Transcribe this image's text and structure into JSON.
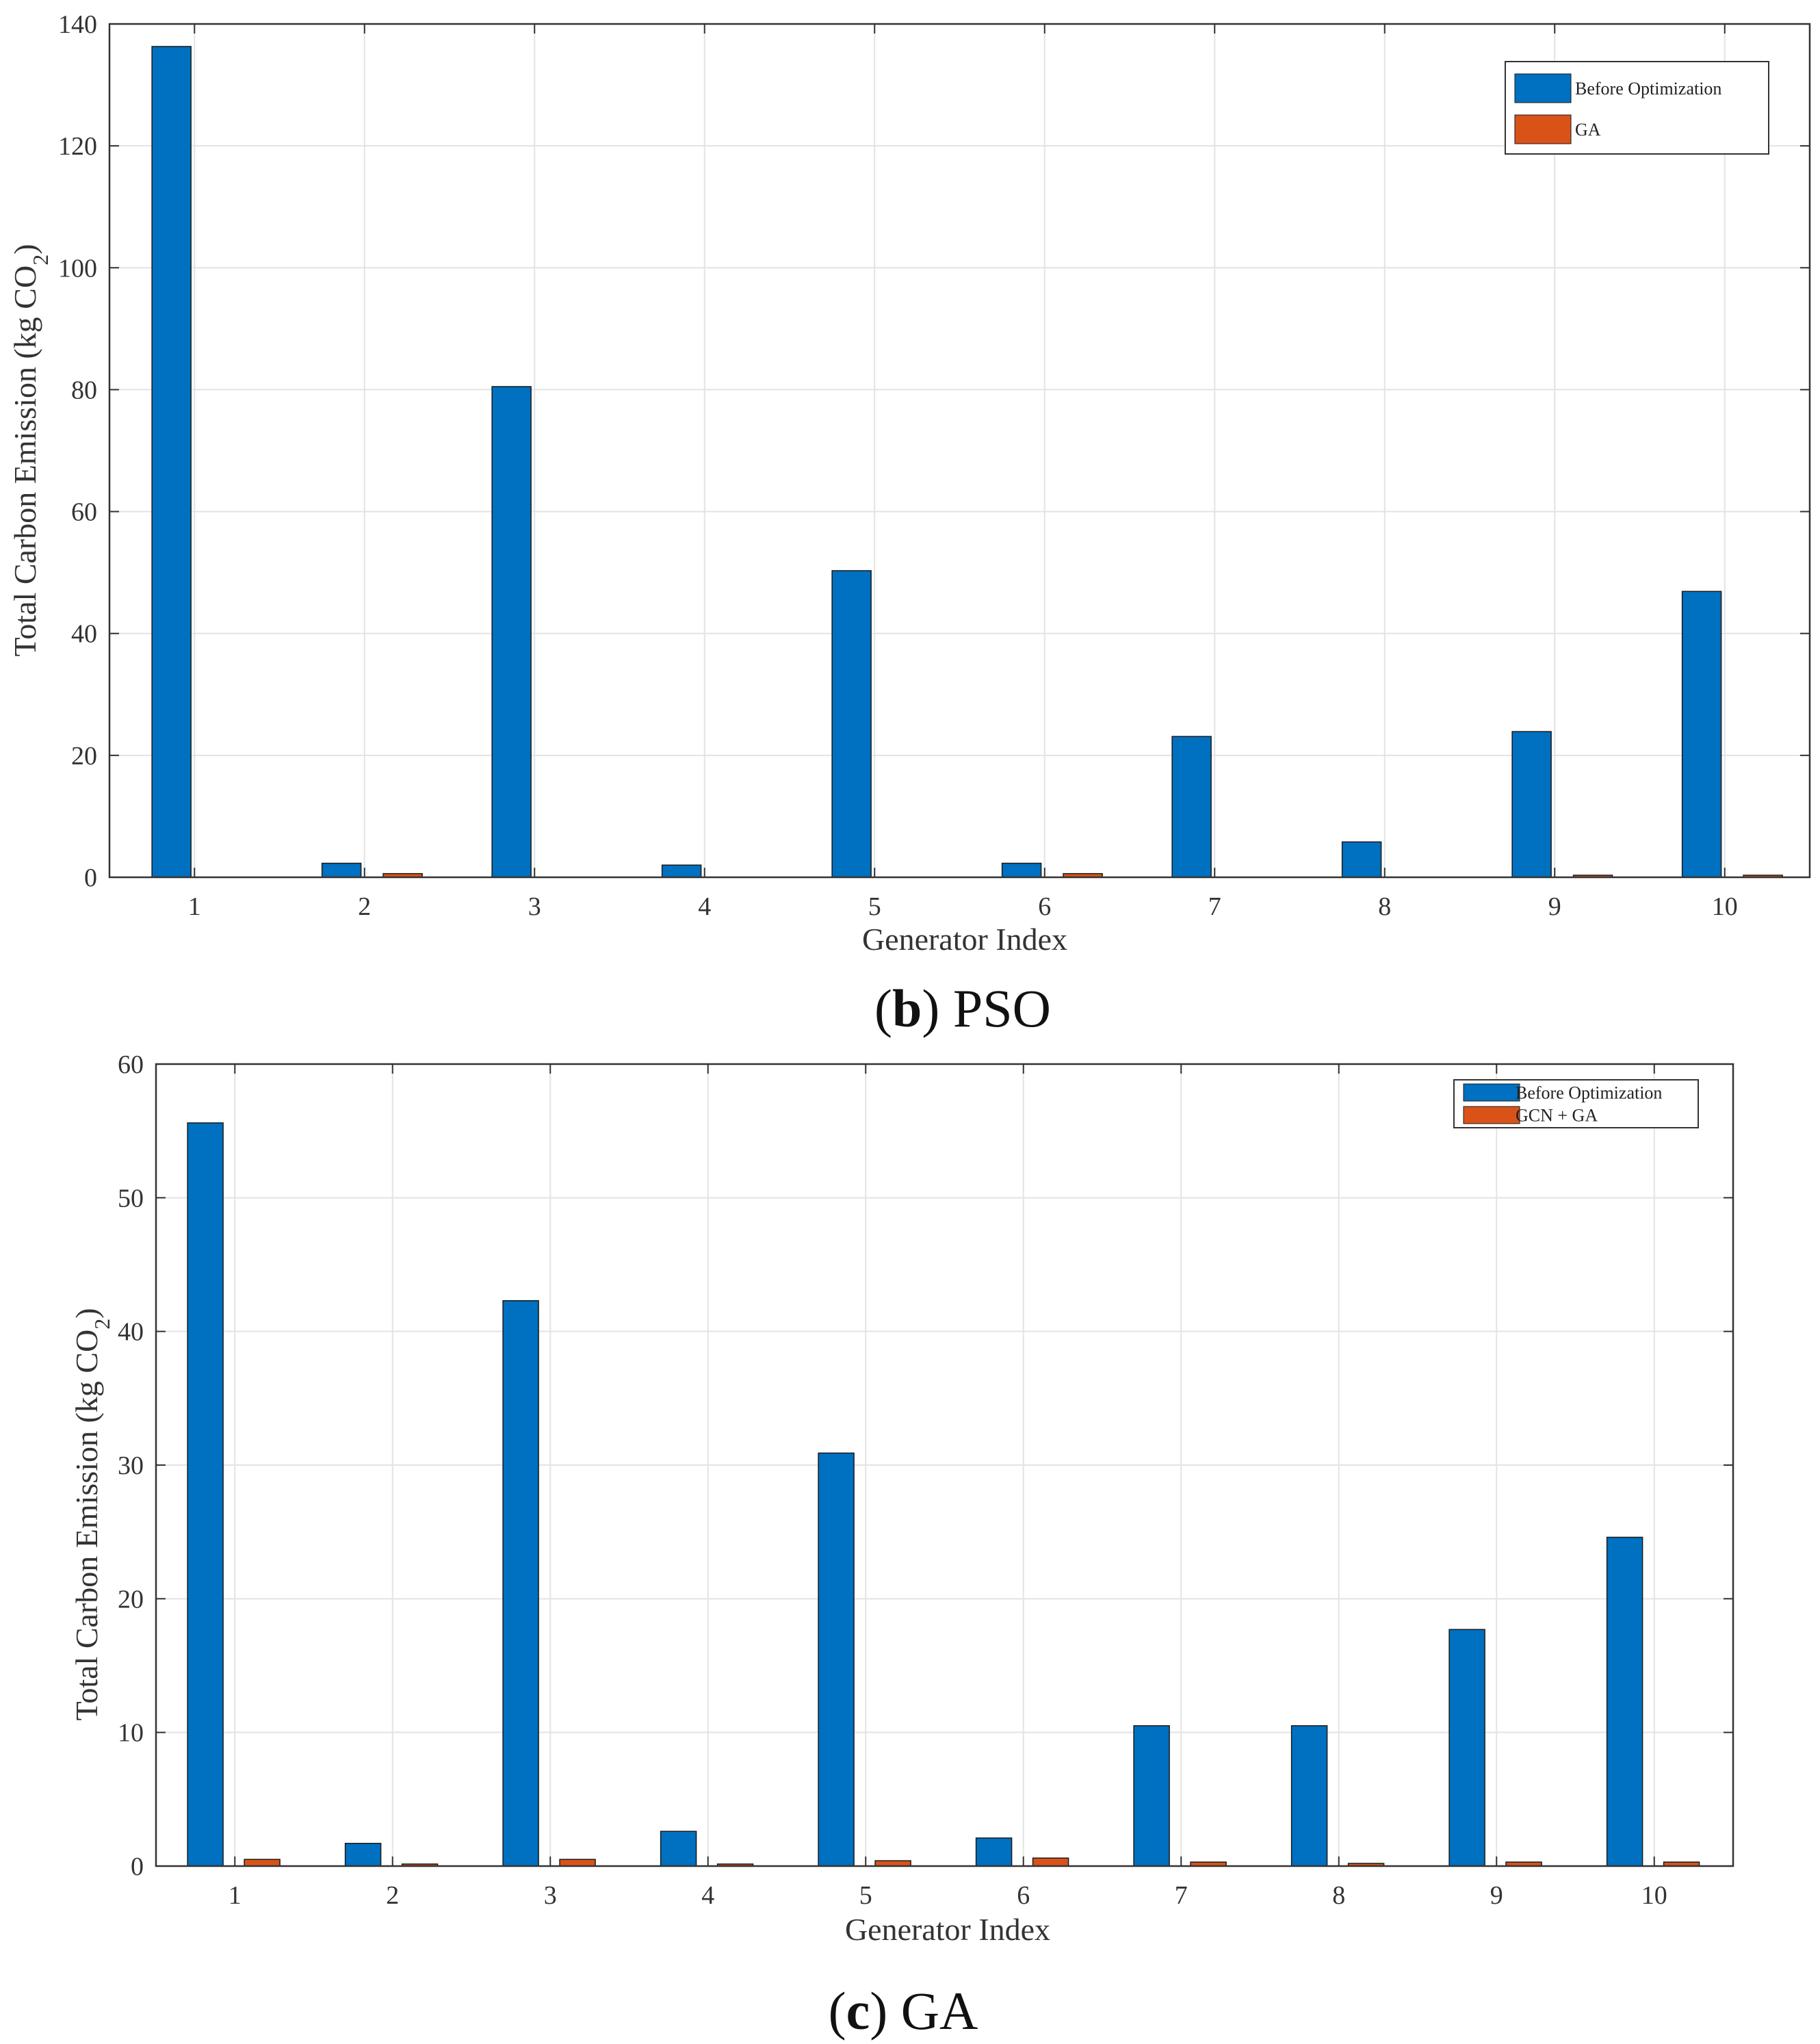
{
  "chart_data": [
    {
      "type": "bar",
      "caption_letter": "b",
      "caption_name": "PSO",
      "xlabel": "Generator Index",
      "ylabel": "Total Carbon Emission (kg CO2)",
      "ylim": [
        0,
        140
      ],
      "yticks": [
        0,
        20,
        40,
        60,
        80,
        100,
        120,
        140
      ],
      "categories": [
        "1",
        "2",
        "3",
        "4",
        "5",
        "6",
        "7",
        "8",
        "9",
        "10"
      ],
      "grid": true,
      "legend_position": "top-right",
      "series": [
        {
          "name": "Before Optimization",
          "color": "#0070c0",
          "values": [
            136.3,
            2.3,
            80.5,
            2.0,
            50.3,
            2.3,
            23.1,
            5.8,
            23.9,
            46.9
          ]
        },
        {
          "name": "GA",
          "color": "#d95319",
          "values": [
            0,
            0.6,
            0,
            0,
            0,
            0.6,
            0,
            0,
            0.3,
            0.2
          ]
        }
      ]
    },
    {
      "type": "bar",
      "caption_letter": "c",
      "caption_name": "GA",
      "xlabel": "Generator Index",
      "ylabel": "Total Carbon Emission (kg CO2)",
      "ylim": [
        0,
        60
      ],
      "yticks": [
        0,
        10,
        20,
        30,
        40,
        50,
        60
      ],
      "categories": [
        "1",
        "2",
        "3",
        "4",
        "5",
        "6",
        "7",
        "8",
        "9",
        "10"
      ],
      "grid": true,
      "legend_position": "top-right",
      "series": [
        {
          "name": "Before Optimization",
          "color": "#0070c0",
          "values": [
            55.6,
            1.7,
            42.3,
            2.6,
            30.9,
            2.1,
            10.5,
            10.5,
            17.7,
            24.6
          ]
        },
        {
          "name": "GCN + GA",
          "color": "#d95319",
          "values": [
            0.5,
            0.1,
            0.5,
            0.1,
            0.4,
            0.6,
            0.3,
            0.2,
            0.3,
            0.3
          ]
        }
      ]
    }
  ]
}
